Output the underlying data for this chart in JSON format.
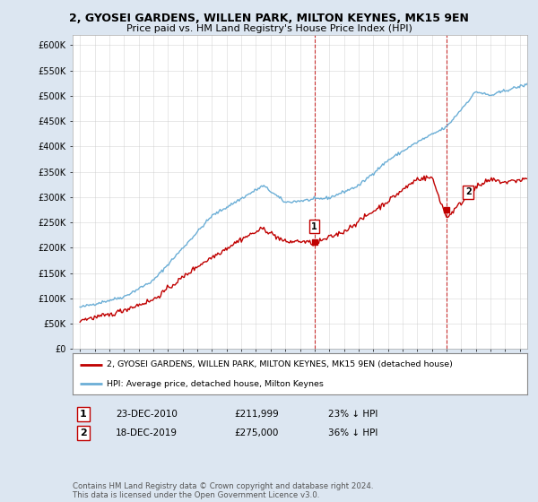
{
  "title1": "2, GYOSEI GARDENS, WILLEN PARK, MILTON KEYNES, MK15 9EN",
  "title2": "Price paid vs. HM Land Registry's House Price Index (HPI)",
  "legend_line1": "2, GYOSEI GARDENS, WILLEN PARK, MILTON KEYNES, MK15 9EN (detached house)",
  "legend_line2": "HPI: Average price, detached house, Milton Keynes",
  "annotation1_label": "1",
  "annotation1_date": "23-DEC-2010",
  "annotation1_price": "£211,999",
  "annotation1_hpi": "23% ↓ HPI",
  "annotation2_label": "2",
  "annotation2_date": "18-DEC-2019",
  "annotation2_price": "£275,000",
  "annotation2_hpi": "36% ↓ HPI",
  "footer": "Contains HM Land Registry data © Crown copyright and database right 2024.\nThis data is licensed under the Open Government Licence v3.0.",
  "hpi_color": "#6baed6",
  "price_color": "#c00000",
  "background_color": "#dce6f1",
  "plot_bg_color": "#ffffff",
  "marker1_x": 2010.98,
  "marker2_x": 2019.98,
  "marker1_y": 211999,
  "marker2_y": 275000,
  "ylim": [
    0,
    620000
  ],
  "xlim_start": 1994.5,
  "xlim_end": 2025.5
}
